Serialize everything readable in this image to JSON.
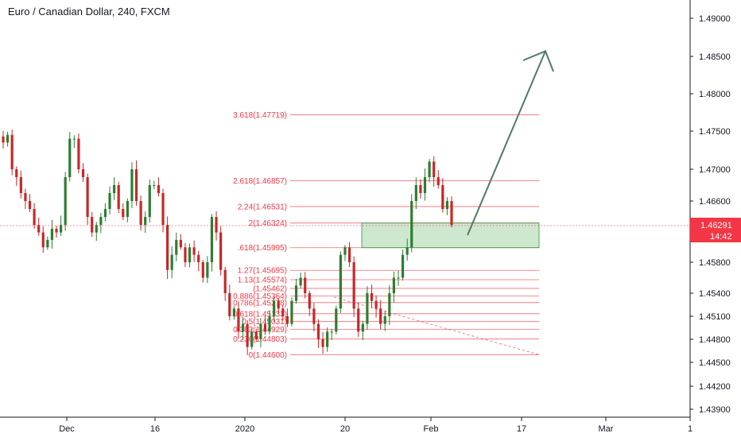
{
  "header": {
    "title": "Euro / Canadian Dollar, 240, FXCM"
  },
  "colors": {
    "up": "#26a69a",
    "up_fill": "#2e7d32",
    "down": "#ef5350",
    "down_fill": "#c62828",
    "fib": "#f23645",
    "zone_fill": "#a5d6a7",
    "zone_stroke": "#388e3c",
    "arrow": "#4f7a66",
    "axis": "#131722",
    "grid": "#e0e3eb",
    "price_badge": "#f23645"
  },
  "price_axis": {
    "min": 1.439,
    "max": 1.492,
    "labels": [
      "1.49000",
      "1.48500",
      "1.48000",
      "1.47500",
      "1.47000",
      "1.46600",
      "1.46291",
      "1.45800",
      "1.45400",
      "1.45100",
      "1.44800",
      "1.44500",
      "1.44200",
      "1.43900"
    ],
    "ticks": [
      1.49,
      1.485,
      1.48,
      1.475,
      1.47,
      1.466,
      1.458,
      1.454,
      1.451,
      1.448,
      1.445,
      1.442,
      1.439
    ]
  },
  "current_price": {
    "value": 1.46291,
    "label": "1.46291",
    "countdown": "14:42"
  },
  "time_axis": {
    "labels": [
      "Dec",
      "16",
      "2020",
      "20",
      "Feb",
      "17",
      "Mar",
      "1"
    ]
  },
  "fibonacci": {
    "levels": [
      {
        "label": "3.618(1.47719)",
        "value": 1.47719
      },
      {
        "label": "2.618(1.46857)",
        "value": 1.46857
      },
      {
        "label": "2.24(1.46531)",
        "value": 1.46531
      },
      {
        "label": "2(1.46324)",
        "value": 1.46324
      },
      {
        "label": ".618(1.45995)",
        "value": 1.45995
      },
      {
        "label": "1.27(1.45695)",
        "value": 1.45695
      },
      {
        "label": "1.13(1.45574)",
        "value": 1.45574
      },
      {
        "label": "(1.45462)",
        "value": 1.45462
      },
      {
        "label": "0.886(1.45364)",
        "value": 1.45364
      },
      {
        "label": "0.786(1.45278)",
        "value": 1.45278
      },
      {
        "label": "0.618(1.45133)",
        "value": 1.45133
      },
      {
        "label": "0.5(1.45031)",
        "value": 1.45031
      },
      {
        "label": "0.382(1.44929)",
        "value": 1.44929
      },
      {
        "label": "0.236(1.44803)",
        "value": 1.44803
      },
      {
        "label": "0(1.44600)",
        "value": 1.446
      }
    ]
  },
  "demand_zone": {
    "top": 1.46324,
    "bottom": 1.45995
  },
  "projection": {
    "target_price": 1.4857
  },
  "chart_data": {
    "type": "candlestick",
    "title": "Euro / Canadian Dollar, 240, FXCM",
    "xlabel": "",
    "ylabel": "",
    "ylim": [
      1.439,
      1.492
    ],
    "x_tick_labels": [
      "Dec",
      "16",
      "2020",
      "20",
      "Feb",
      "17",
      "Mar",
      "1"
    ],
    "legend": "none",
    "grid": false,
    "close_path": [
      1.4735,
      1.4745,
      1.47,
      1.469,
      1.467,
      1.466,
      1.465,
      1.463,
      1.462,
      1.46,
      1.461,
      1.4625,
      1.462,
      1.463,
      1.469,
      1.474,
      1.474,
      1.47,
      1.469,
      1.464,
      1.462,
      1.463,
      1.464,
      1.465,
      1.467,
      1.468,
      1.465,
      1.464,
      1.466,
      1.47,
      1.466,
      1.463,
      1.464,
      1.468,
      1.468,
      1.467,
      1.463,
      1.457,
      1.459,
      1.461,
      1.46,
      1.458,
      1.46,
      1.459,
      1.458,
      1.456,
      1.458,
      1.464,
      1.462,
      1.457,
      1.454,
      1.451,
      1.452,
      1.449,
      1.45,
      1.447,
      1.449,
      1.448,
      1.45,
      1.449,
      1.451,
      1.453,
      1.452,
      1.451,
      1.45,
      1.453,
      1.455,
      1.456,
      1.454,
      1.452,
      1.45,
      1.448,
      1.447,
      1.449,
      1.449,
      1.452,
      1.459,
      1.46,
      1.458,
      1.452,
      1.449,
      1.45,
      1.454,
      1.453,
      1.452,
      1.45,
      1.451,
      1.454,
      1.456,
      1.456,
      1.459,
      1.46,
      1.466,
      1.468,
      1.467,
      1.469,
      1.471,
      1.469,
      1.468,
      1.465,
      1.466,
      1.463
    ]
  }
}
